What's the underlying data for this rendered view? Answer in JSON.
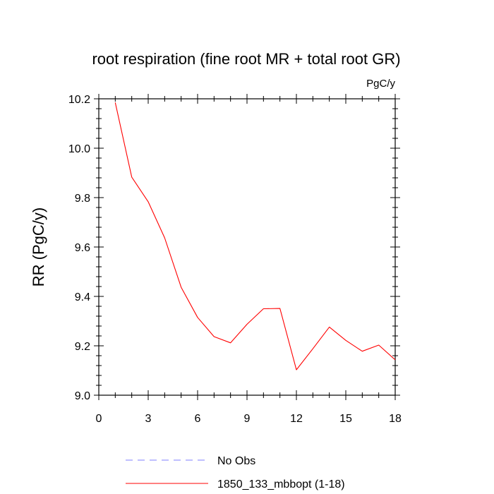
{
  "chart_data": {
    "type": "line",
    "title": "root respiration (fine root MR + total root GR)",
    "units": "PgC/y",
    "xlabel": "",
    "ylabel": "RR  (PgC/y)",
    "xlim": [
      0,
      18
    ],
    "ylim": [
      9.0,
      10.2
    ],
    "x_ticks": [
      0,
      3,
      6,
      9,
      12,
      15,
      18
    ],
    "x_tick_labels": [
      "0",
      "3",
      "6",
      "9",
      "12",
      "15",
      "18"
    ],
    "y_ticks": [
      9.0,
      9.2,
      9.4,
      9.6,
      9.8,
      10.0,
      10.2
    ],
    "y_tick_labels": [
      "9.0",
      "9.2",
      "9.4",
      "9.6",
      "9.8",
      "10.0",
      "10.2"
    ],
    "series": [
      {
        "name": "1850_133_mbbopt (1-18)",
        "color": "#ff0000",
        "dash": "solid",
        "x": [
          1,
          2,
          3,
          4,
          5,
          6,
          7,
          8,
          9,
          10,
          11,
          12,
          13,
          14,
          15,
          16,
          17,
          18
        ],
        "y": [
          10.185,
          9.883,
          9.783,
          9.637,
          9.437,
          9.315,
          9.237,
          9.212,
          9.287,
          9.35,
          9.351,
          9.103,
          9.188,
          9.276,
          9.222,
          9.178,
          9.203,
          9.143
        ]
      }
    ],
    "legend": [
      {
        "label": "No Obs",
        "color": "#7f7fff",
        "dash": "dashed"
      },
      {
        "label": "1850_133_mbbopt (1-18)",
        "color": "#ff0000",
        "dash": "solid"
      }
    ],
    "legend_position": "bottom"
  }
}
